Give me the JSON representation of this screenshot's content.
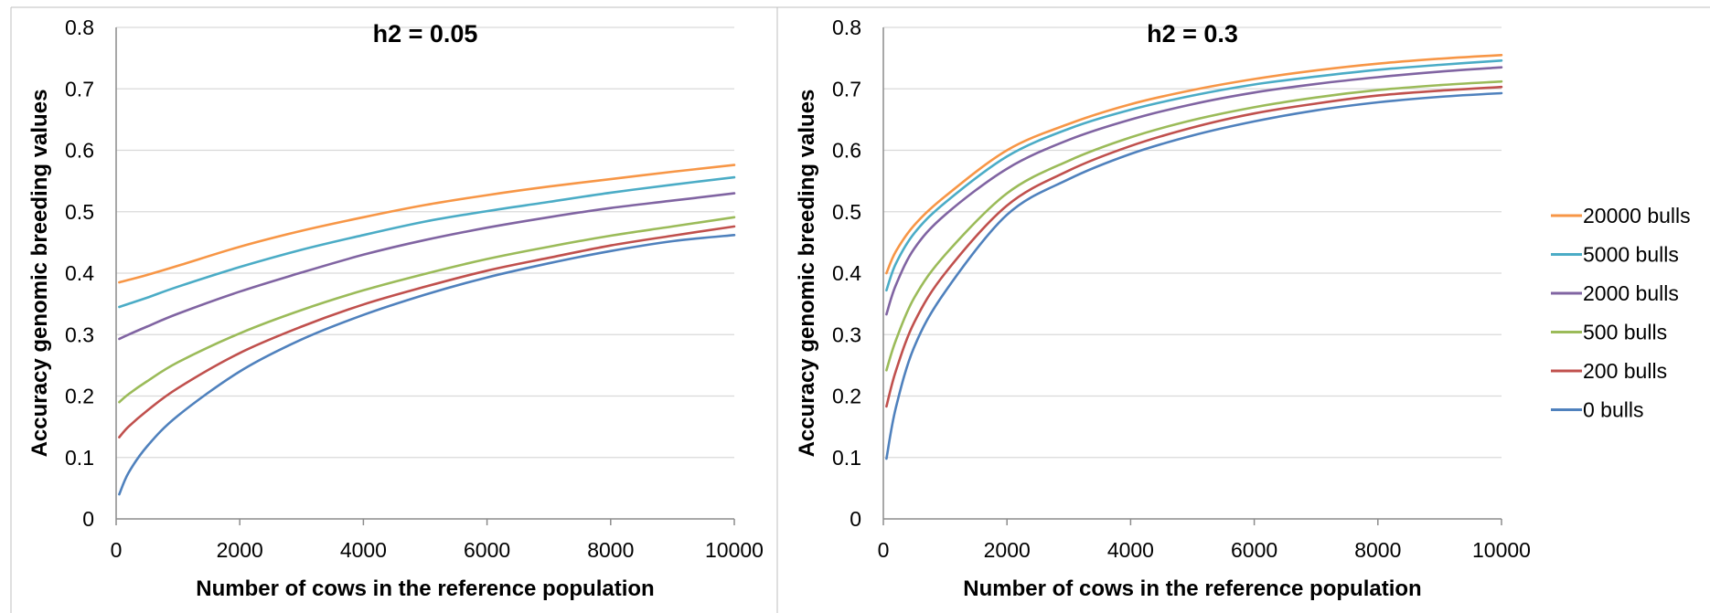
{
  "chart_data": [
    {
      "type": "line",
      "title": "h2 = 0.05",
      "xlabel": "Number of cows in the reference population",
      "ylabel": "Accuracy genomic breeding values",
      "xlim": [
        0,
        10000
      ],
      "ylim": [
        0,
        0.8
      ],
      "xticks": [
        "0",
        "2000",
        "4000",
        "6000",
        "8000",
        "10000"
      ],
      "yticks": [
        "0",
        "0.1",
        "0.2",
        "0.3",
        "0.4",
        "0.5",
        "0.6",
        "0.7",
        "0.8"
      ],
      "grid": true,
      "x": [
        50,
        200,
        500,
        1000,
        2000,
        3000,
        4000,
        5000,
        6000,
        7000,
        8000,
        9000,
        10000
      ],
      "series": [
        {
          "name": "20000 bulls",
          "color": "#F79646",
          "values": [
            0.385,
            0.389,
            0.397,
            0.412,
            0.443,
            0.469,
            0.491,
            0.511,
            0.527,
            0.541,
            0.553,
            0.565,
            0.576
          ]
        },
        {
          "name": "5000 bulls",
          "color": "#4BACC6",
          "values": [
            0.345,
            0.35,
            0.36,
            0.378,
            0.41,
            0.438,
            0.462,
            0.484,
            0.501,
            0.516,
            0.531,
            0.544,
            0.556
          ]
        },
        {
          "name": "2000 bulls",
          "color": "#8064A2",
          "values": [
            0.293,
            0.3,
            0.313,
            0.334,
            0.37,
            0.401,
            0.43,
            0.454,
            0.474,
            0.491,
            0.506,
            0.518,
            0.53
          ]
        },
        {
          "name": "500 bulls",
          "color": "#9BBB59",
          "values": [
            0.19,
            0.203,
            0.224,
            0.255,
            0.302,
            0.34,
            0.372,
            0.399,
            0.423,
            0.443,
            0.461,
            0.476,
            0.491
          ]
        },
        {
          "name": "200 bulls",
          "color": "#C0504D",
          "values": [
            0.133,
            0.15,
            0.176,
            0.213,
            0.27,
            0.313,
            0.349,
            0.378,
            0.404,
            0.425,
            0.445,
            0.461,
            0.476
          ]
        },
        {
          "name": "0 bulls",
          "color": "#4F81BD",
          "values": [
            0.04,
            0.075,
            0.118,
            0.168,
            0.24,
            0.292,
            0.332,
            0.365,
            0.393,
            0.416,
            0.436,
            0.452,
            0.462
          ]
        }
      ]
    },
    {
      "type": "line",
      "title": "h2 = 0.3",
      "xlabel": "Number of cows in the reference population",
      "ylabel": "Accuracy genomic breeding values",
      "xlim": [
        0,
        10000
      ],
      "ylim": [
        0,
        0.8
      ],
      "xticks": [
        "0",
        "2000",
        "4000",
        "6000",
        "8000",
        "10000"
      ],
      "yticks": [
        "0",
        "0.1",
        "0.2",
        "0.3",
        "0.4",
        "0.5",
        "0.6",
        "0.7",
        "0.8"
      ],
      "grid": true,
      "legend_position": "right",
      "x": [
        50,
        200,
        500,
        1000,
        2000,
        3000,
        4000,
        5000,
        6000,
        7000,
        8000,
        9000,
        10000
      ],
      "series": [
        {
          "name": "20000 bulls",
          "color": "#F79646",
          "values": [
            0.4,
            0.435,
            0.478,
            0.525,
            0.6,
            0.643,
            0.675,
            0.698,
            0.716,
            0.73,
            0.741,
            0.749,
            0.755
          ]
        },
        {
          "name": "5000 bulls",
          "color": "#4BACC6",
          "values": [
            0.372,
            0.415,
            0.465,
            0.515,
            0.59,
            0.635,
            0.666,
            0.689,
            0.707,
            0.72,
            0.731,
            0.739,
            0.746
          ]
        },
        {
          "name": "2000 bulls",
          "color": "#8064A2",
          "values": [
            0.333,
            0.38,
            0.44,
            0.495,
            0.57,
            0.617,
            0.65,
            0.675,
            0.694,
            0.708,
            0.719,
            0.728,
            0.735
          ]
        },
        {
          "name": "500 bulls",
          "color": "#9BBB59",
          "values": [
            0.242,
            0.29,
            0.36,
            0.43,
            0.53,
            0.583,
            0.621,
            0.649,
            0.67,
            0.686,
            0.698,
            0.706,
            0.712
          ]
        },
        {
          "name": "200 bulls",
          "color": "#C0504D",
          "values": [
            0.183,
            0.24,
            0.32,
            0.4,
            0.51,
            0.567,
            0.607,
            0.637,
            0.66,
            0.676,
            0.689,
            0.697,
            0.703
          ]
        },
        {
          "name": "0 bulls",
          "color": "#4F81BD",
          "values": [
            0.098,
            0.18,
            0.28,
            0.37,
            0.495,
            0.553,
            0.594,
            0.624,
            0.647,
            0.665,
            0.678,
            0.687,
            0.693
          ]
        }
      ]
    }
  ]
}
